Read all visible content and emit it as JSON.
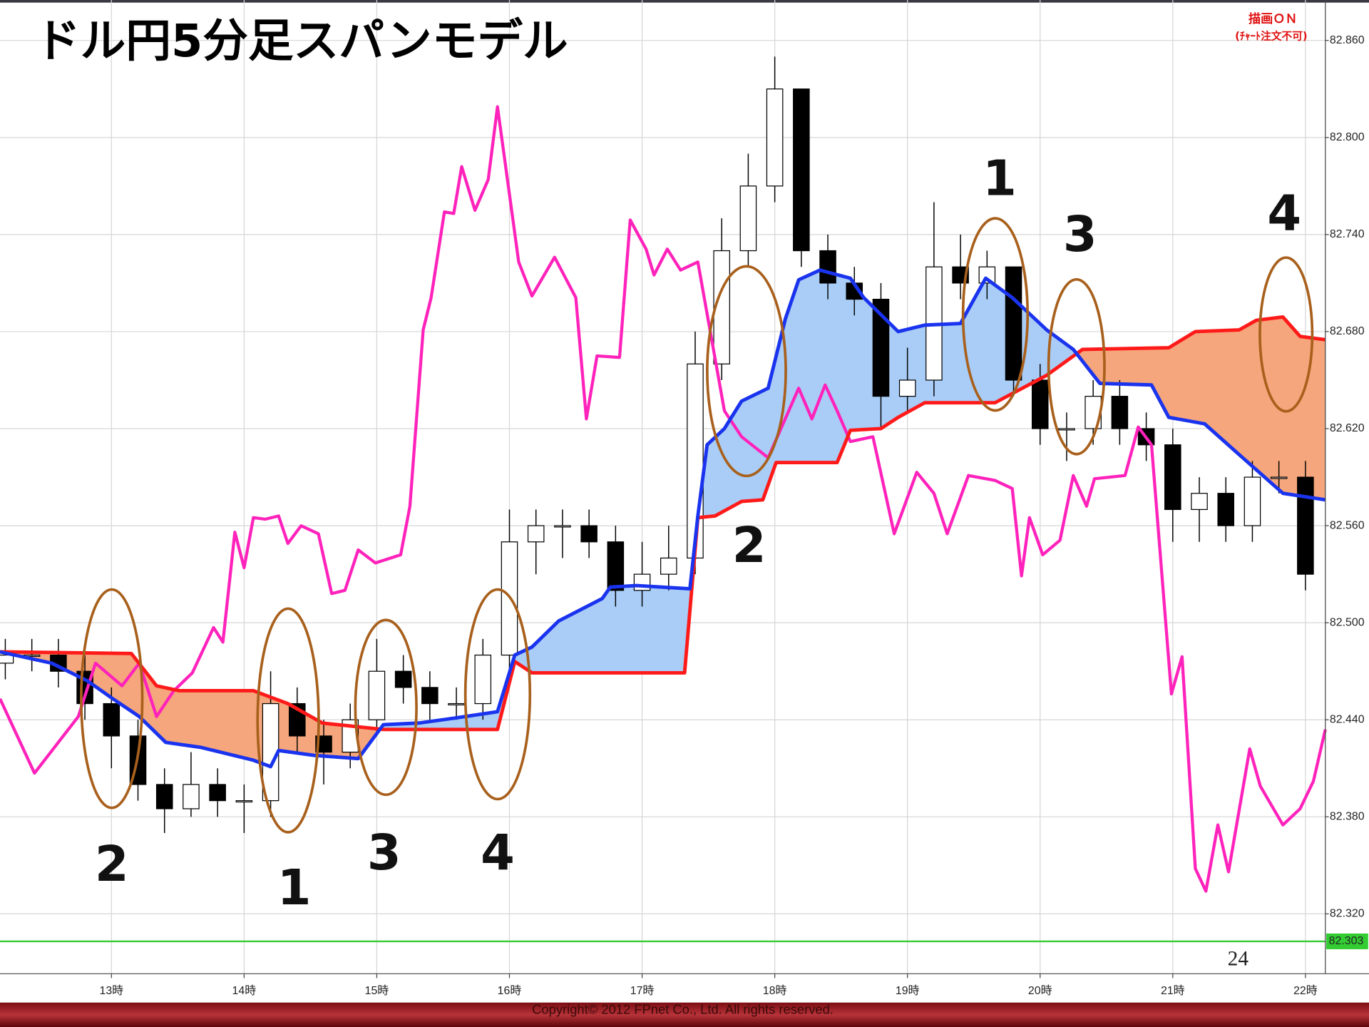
{
  "chart_data": {
    "type": "candlestick",
    "title": "ドル円5分足スパンモデル",
    "notice": [
      "描画ＯＮ",
      "(ﾁｬｰﾄ注文不可)"
    ],
    "page_number": 24,
    "copyright": "Copyright© 2012 FPnet Co., Ltd. All rights reserved.",
    "xlim": [
      12.16,
      22.15
    ],
    "ylim": [
      82.283,
      82.885
    ],
    "xticks": [
      {
        "value": 13,
        "label": "13時"
      },
      {
        "value": 14,
        "label": "14時"
      },
      {
        "value": 15,
        "label": "15時"
      },
      {
        "value": 16,
        "label": "16時"
      },
      {
        "value": 17,
        "label": "17時"
      },
      {
        "value": 18,
        "label": "18時"
      },
      {
        "value": 19,
        "label": "19時"
      },
      {
        "value": 20,
        "label": "20時"
      },
      {
        "value": 21,
        "label": "21時"
      },
      {
        "value": 22,
        "label": "22時"
      }
    ],
    "yticks": [
      {
        "value": 82.32,
        "label": "82.320"
      },
      {
        "value": 82.38,
        "label": "82.380"
      },
      {
        "value": 82.44,
        "label": "82.440"
      },
      {
        "value": 82.5,
        "label": "82.500"
      },
      {
        "value": 82.56,
        "label": "82.560"
      },
      {
        "value": 82.62,
        "label": "82.620"
      },
      {
        "value": 82.68,
        "label": "82.680"
      },
      {
        "value": 82.74,
        "label": "82.740"
      },
      {
        "value": 82.8,
        "label": "82.800"
      },
      {
        "value": 82.86,
        "label": "82.860"
      }
    ],
    "grid": true,
    "up_color": "#ffffff",
    "down_color": "#000000",
    "current_price": {
      "value": 82.303,
      "label": "82.303",
      "color": "#33cc33"
    },
    "candles": {
      "x": [
        12.2,
        12.4,
        12.6,
        12.8,
        13.0,
        13.2,
        13.4,
        13.6,
        13.8,
        14.0,
        14.2,
        14.4,
        14.6,
        14.8,
        15.0,
        15.2,
        15.4,
        15.6,
        15.8,
        16.0,
        16.2,
        16.4,
        16.6,
        16.8,
        17.0,
        17.2,
        17.4,
        17.6,
        17.8,
        18.0,
        18.2,
        18.4,
        18.6,
        18.8,
        19.0,
        19.2,
        19.4,
        19.6,
        19.8,
        20.0,
        20.2,
        20.4,
        20.6,
        20.8,
        21.0,
        21.2,
        21.4,
        21.6,
        21.8,
        22.0
      ],
      "open": [
        82.475,
        82.48,
        82.48,
        82.47,
        82.45,
        82.43,
        82.4,
        82.385,
        82.4,
        82.39,
        82.39,
        82.45,
        82.43,
        82.42,
        82.44,
        82.47,
        82.46,
        82.45,
        82.45,
        82.48,
        82.55,
        82.56,
        82.56,
        82.55,
        82.52,
        82.53,
        82.54,
        82.66,
        82.73,
        82.77,
        82.83,
        82.73,
        82.71,
        82.7,
        82.64,
        82.65,
        82.72,
        82.71,
        82.72,
        82.65,
        82.62,
        82.62,
        82.64,
        82.62,
        82.61,
        82.57,
        82.58,
        82.56,
        82.59,
        82.59
      ],
      "high": [
        82.49,
        82.49,
        82.49,
        82.48,
        82.46,
        82.44,
        82.41,
        82.42,
        82.41,
        82.4,
        82.47,
        82.46,
        82.44,
        82.45,
        82.49,
        82.48,
        82.47,
        82.46,
        82.49,
        82.57,
        82.57,
        82.57,
        82.57,
        82.56,
        82.55,
        82.56,
        82.68,
        82.75,
        82.79,
        82.85,
        82.83,
        82.74,
        82.72,
        82.71,
        82.67,
        82.76,
        82.74,
        82.73,
        82.72,
        82.66,
        82.63,
        82.65,
        82.65,
        82.63,
        82.62,
        82.59,
        82.59,
        82.6,
        82.6,
        82.6
      ],
      "low": [
        82.465,
        82.47,
        82.46,
        82.44,
        82.41,
        82.39,
        82.37,
        82.38,
        82.38,
        82.37,
        82.38,
        82.42,
        82.4,
        82.41,
        82.43,
        82.45,
        82.44,
        82.44,
        82.44,
        82.47,
        82.53,
        82.54,
        82.54,
        82.51,
        82.51,
        82.52,
        82.53,
        82.65,
        82.72,
        82.76,
        82.72,
        82.7,
        82.69,
        82.62,
        82.63,
        82.64,
        82.7,
        82.7,
        82.64,
        82.61,
        82.6,
        82.61,
        82.61,
        82.6,
        82.55,
        82.55,
        82.55,
        82.55,
        82.58,
        82.52
      ],
      "close": [
        82.48,
        82.48,
        82.47,
        82.45,
        82.43,
        82.4,
        82.385,
        82.4,
        82.39,
        82.39,
        82.45,
        82.43,
        82.42,
        82.44,
        82.47,
        82.46,
        82.45,
        82.45,
        82.48,
        82.55,
        82.56,
        82.56,
        82.55,
        82.52,
        82.53,
        82.54,
        82.66,
        82.73,
        82.77,
        82.83,
        82.73,
        82.71,
        82.7,
        82.64,
        82.65,
        82.72,
        82.71,
        82.72,
        82.65,
        82.62,
        82.62,
        82.64,
        82.62,
        82.61,
        82.57,
        82.58,
        82.56,
        82.59,
        82.59,
        82.53
      ]
    },
    "cloud_colors": [
      "#a9cdf7",
      "#f5a67c"
    ],
    "series": [
      {
        "color": "#ff1a1a",
        "x": [
          12.16,
          13.15,
          13.34,
          13.51,
          14.07,
          14.33,
          14.59,
          15.05,
          15.91,
          16.04,
          16.17,
          17.32,
          17.42,
          17.55,
          17.75,
          17.91,
          18.01,
          18.47,
          18.57,
          18.8,
          18.93,
          19.13,
          19.66,
          20.05,
          20.32,
          20.97,
          21.17,
          21.5,
          21.63,
          21.83,
          21.96,
          22.15
        ],
        "values": [
          82.482,
          82.481,
          82.461,
          82.458,
          82.458,
          82.45,
          82.438,
          82.434,
          82.434,
          82.476,
          82.469,
          82.469,
          82.565,
          82.566,
          82.575,
          82.576,
          82.599,
          82.599,
          82.619,
          82.62,
          82.627,
          82.636,
          82.636,
          82.653,
          82.669,
          82.67,
          82.68,
          82.681,
          82.687,
          82.689,
          82.677,
          82.675
        ]
      },
      {
        "color": "#1a33ee",
        "x": [
          12.16,
          12.55,
          12.82,
          13.01,
          13.21,
          13.41,
          13.67,
          14.07,
          14.2,
          14.26,
          14.53,
          14.86,
          15.05,
          15.32,
          15.58,
          15.91,
          16.04,
          16.17,
          16.37,
          16.7,
          16.76,
          16.96,
          17.36,
          17.42,
          17.49,
          17.62,
          17.75,
          17.95,
          18.08,
          18.18,
          18.34,
          18.57,
          18.67,
          18.93,
          19.13,
          19.4,
          19.59,
          19.79,
          20.05,
          20.25,
          20.45,
          20.84,
          20.97,
          21.24,
          21.5,
          21.83,
          22.15
        ],
        "values": [
          82.482,
          82.475,
          82.464,
          82.453,
          82.442,
          82.426,
          82.423,
          82.415,
          82.411,
          82.421,
          82.418,
          82.416,
          82.437,
          82.438,
          82.441,
          82.445,
          82.48,
          82.485,
          82.501,
          82.515,
          82.522,
          82.523,
          82.521,
          82.566,
          82.61,
          82.62,
          82.637,
          82.645,
          82.688,
          82.712,
          82.718,
          82.713,
          82.701,
          82.68,
          82.684,
          82.685,
          82.713,
          82.701,
          82.681,
          82.669,
          82.648,
          82.647,
          82.627,
          82.623,
          82.604,
          82.58,
          82.576
        ]
      },
      {
        "color": "#ff22bb",
        "x": [
          12.16,
          12.42,
          12.75,
          12.88,
          13.08,
          13.21,
          13.34,
          13.47,
          13.61,
          13.77,
          13.84,
          13.93,
          14.0,
          14.07,
          14.16,
          14.26,
          14.33,
          14.43,
          14.56,
          14.66,
          14.76,
          14.86,
          14.99,
          15.18,
          15.25,
          15.35,
          15.41,
          15.51,
          15.58,
          15.64,
          15.74,
          15.84,
          15.91,
          16.07,
          16.17,
          16.34,
          16.5,
          16.58,
          16.66,
          16.83,
          16.91,
          17.03,
          17.09,
          17.19,
          17.29,
          17.42,
          17.62,
          17.75,
          17.95,
          18.18,
          18.28,
          18.38,
          18.47,
          18.57,
          18.74,
          18.9,
          19.07,
          19.2,
          19.3,
          19.46,
          19.66,
          19.79,
          19.86,
          19.92,
          20.02,
          20.15,
          20.25,
          20.35,
          20.41,
          20.64,
          20.74,
          20.84,
          20.99,
          21.07,
          21.17,
          21.25,
          21.34,
          21.42,
          21.58,
          21.66,
          21.83,
          21.96,
          22.06,
          22.15
        ],
        "values": [
          82.453,
          82.407,
          82.442,
          82.475,
          82.461,
          82.475,
          82.442,
          82.458,
          82.469,
          82.497,
          82.488,
          82.556,
          82.534,
          82.565,
          82.564,
          82.566,
          82.549,
          82.56,
          82.555,
          82.518,
          82.52,
          82.545,
          82.537,
          82.542,
          82.572,
          82.681,
          82.701,
          82.754,
          82.753,
          82.782,
          82.755,
          82.774,
          82.819,
          82.723,
          82.702,
          82.726,
          82.701,
          82.626,
          82.665,
          82.664,
          82.749,
          82.731,
          82.715,
          82.731,
          82.718,
          82.723,
          82.631,
          82.615,
          82.602,
          82.645,
          82.626,
          82.647,
          82.631,
          82.612,
          82.615,
          82.555,
          82.593,
          82.58,
          82.555,
          82.591,
          82.588,
          82.583,
          82.529,
          82.565,
          82.542,
          82.551,
          82.591,
          82.572,
          82.589,
          82.591,
          82.621,
          82.61,
          82.456,
          82.479,
          82.348,
          82.334,
          82.375,
          82.346,
          82.422,
          82.399,
          82.375,
          82.385,
          82.402,
          82.434
        ]
      }
    ],
    "annotations": [
      "2",
      "1",
      "3",
      "4",
      "2",
      "1",
      "3",
      "4"
    ]
  }
}
